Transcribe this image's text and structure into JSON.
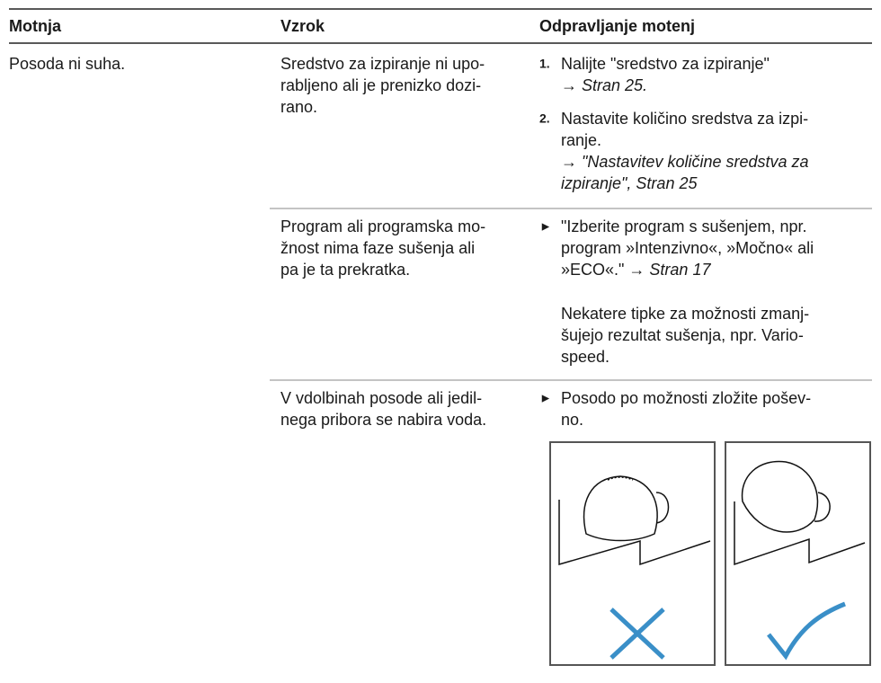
{
  "table": {
    "headers": [
      "Motnja",
      "Vzrok",
      "Odpravljanje motenj"
    ],
    "rows": [
      {
        "problem": [
          "Posoda ni suha."
        ],
        "cause": [
          "Sredstvo za izpiranje ni upo-",
          "rabljeno ali je prenizko dozi-",
          "rano."
        ],
        "remedy": [
          {
            "marker": "1.",
            "lines": [
              "Nalijte \"sredstvo za izpiranje\"",
              {
                "plain": "→ ",
                "italic": "Stran 25."
              }
            ]
          },
          {
            "marker": "2.",
            "lines": [
              "Nastavite količino sredstva za izpi-",
              "ranje.",
              {
                "plain": "→ ",
                "italic": "\"Nastavitev količine sredstva za"
              },
              {
                "italic": "izpiranje\", Stran 25"
              }
            ]
          }
        ]
      },
      {
        "cause": [
          "Program ali programska mo-",
          "žnost nima faze sušenja ali",
          "pa je ta prekratka."
        ],
        "remedy": [
          {
            "marker": "►",
            "lines": [
              "\"Izberite program s sušenjem, npr.",
              "program »Intenzivno«, »Močno« ali",
              {
                "plain": "»ECO«.\" → ",
                "italic": "Stran 17"
              }
            ]
          },
          {
            "lines": [
              "Nekatere tipke za možnosti zmanj-",
              "šujejo rezultat sušenja, npr. Vario-",
              "speed."
            ]
          }
        ]
      },
      {
        "cause": [
          "V vdolbinah posode ali jedil-",
          "nega pribora se nabira voda."
        ],
        "remedy": [
          {
            "marker": "►",
            "lines": [
              "Posodo po možnosti zložite pošev-",
              "no."
            ]
          }
        ]
      }
    ]
  }
}
